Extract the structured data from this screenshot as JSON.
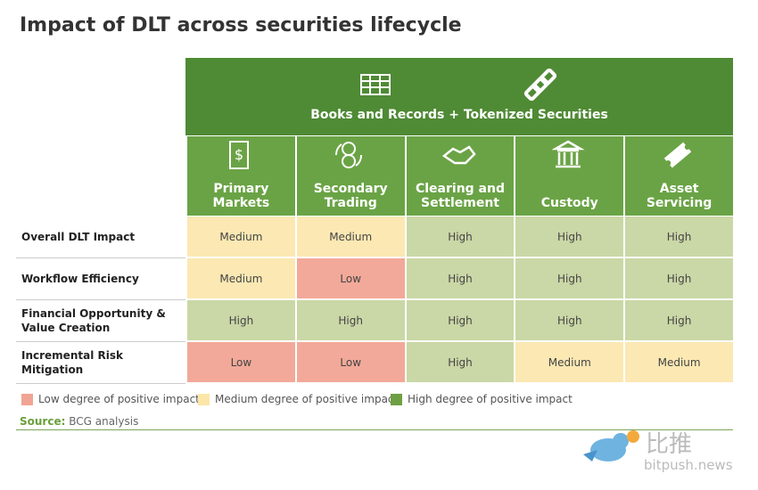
{
  "title": "Impact of DLT across securities lifecycle",
  "header": {
    "banner": "Books and Records + Tokenized Securities"
  },
  "columns": [
    "Primary Markets",
    "Secondary Trading",
    "Clearing and Settlement",
    "Custody",
    "Asset Servicing"
  ],
  "rows": [
    {
      "label": "Overall DLT Impact",
      "cells": [
        "Medium",
        "Medium",
        "High",
        "High",
        "High"
      ]
    },
    {
      "label": "Workflow Efficiency",
      "cells": [
        "Medium",
        "Low",
        "High",
        "High",
        "High"
      ]
    },
    {
      "label": "Financial Opportunity & Value Creation",
      "cells": [
        "High",
        "High",
        "High",
        "High",
        "High"
      ]
    },
    {
      "label": "Incremental Risk Mitigation",
      "cells": [
        "Low",
        "Low",
        "High",
        "Medium",
        "Medium"
      ]
    }
  ],
  "cell_colors": {
    "Low": "#f2a999",
    "Medium": "#fbe8b3",
    "High": "#cad7a6"
  },
  "legend": [
    {
      "label": "Low degree of positive impact",
      "color": "#f0a493"
    },
    {
      "label": "Medium degree of positive impact",
      "color": "#fbe6a8"
    },
    {
      "label": "High degree of positive impact",
      "color": "#6e9f43"
    }
  ],
  "source": {
    "label": "Source:",
    "text": "BCG analysis"
  },
  "watermark": {
    "name": "比推",
    "site": "bitpush.news"
  }
}
